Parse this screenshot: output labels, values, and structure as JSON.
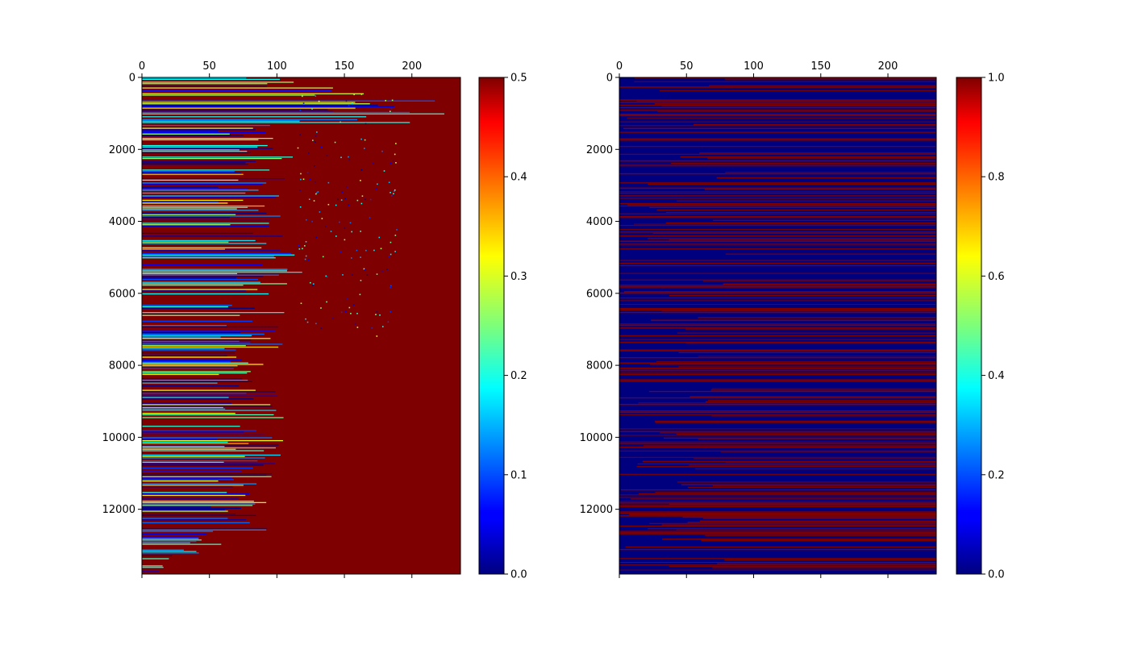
{
  "chart_data": [
    {
      "type": "heatmap",
      "title": "",
      "xlabel": "",
      "ylabel": "",
      "xlim": [
        0,
        236
      ],
      "ylim": [
        13800,
        0
      ],
      "x_ticks": [
        0,
        50,
        100,
        150,
        200
      ],
      "y_ticks": [
        0,
        2000,
        4000,
        6000,
        8000,
        10000,
        12000
      ],
      "x_tick_labels": [
        "0",
        "50",
        "100",
        "150",
        "200"
      ],
      "y_tick_labels": [
        "0",
        "2000",
        "4000",
        "6000",
        "8000",
        "10000",
        "12000"
      ],
      "colormap": "jet",
      "value_range": [
        0,
        0.5
      ],
      "colorbar_ticks": [
        0,
        0.1,
        0.2,
        0.3,
        0.4,
        0.5
      ],
      "colorbar_tick_labels": [
        "0.0",
        "0.1",
        "0.2",
        "0.3",
        "0.4",
        "0.5"
      ],
      "background_value": 0.5,
      "grid": false,
      "row_length_profile": [
        {
          "row": 0,
          "columns_with_low_values": 110
        },
        {
          "row": 1000,
          "columns_with_low_values": 230
        },
        {
          "row": 1300,
          "columns_with_low_values": 90
        },
        {
          "row": 2000,
          "columns_with_low_values": 110
        },
        {
          "row": 3000,
          "columns_with_low_values": 100
        },
        {
          "row": 4000,
          "columns_with_low_values": 100
        },
        {
          "row": 5500,
          "columns_with_low_values": 115
        },
        {
          "row": 6500,
          "columns_with_low_values": 110
        },
        {
          "row": 7500,
          "columns_with_low_values": 100
        },
        {
          "row": 8500,
          "columns_with_low_values": 100
        },
        {
          "row": 9500,
          "columns_with_low_values": 100
        },
        {
          "row": 10500,
          "columns_with_low_values": 100
        },
        {
          "row": 11500,
          "columns_with_low_values": 90
        },
        {
          "row": 12500,
          "columns_with_low_values": 95
        },
        {
          "row": 13500,
          "columns_with_low_values": 20
        }
      ]
    },
    {
      "type": "heatmap",
      "title": "",
      "xlabel": "",
      "ylabel": "",
      "xlim": [
        0,
        236
      ],
      "ylim": [
        13800,
        0
      ],
      "x_ticks": [
        0,
        50,
        100,
        150,
        200
      ],
      "y_ticks": [
        0,
        2000,
        4000,
        6000,
        8000,
        10000,
        12000
      ],
      "x_tick_labels": [
        "0",
        "50",
        "100",
        "150",
        "200"
      ],
      "y_tick_labels": [
        "0",
        "2000",
        "4000",
        "6000",
        "8000",
        "10000",
        "12000"
      ],
      "colormap": "jet",
      "value_range": [
        0,
        1
      ],
      "colorbar_ticks": [
        0,
        0.2,
        0.4,
        0.6,
        0.8,
        1.0
      ],
      "colorbar_tick_labels": [
        "0.0",
        "0.2",
        "0.4",
        "0.6",
        "0.8",
        "1.0"
      ],
      "values_present": [
        0,
        1
      ],
      "grid": false
    }
  ]
}
